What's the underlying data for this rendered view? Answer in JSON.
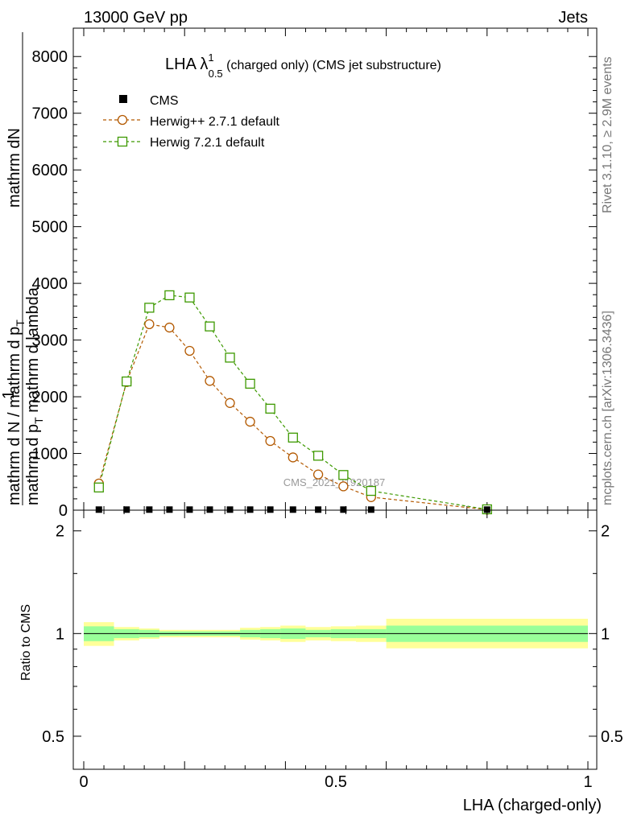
{
  "header": {
    "left": "13000 GeV pp",
    "right": "Jets"
  },
  "side_texts": {
    "rivet": "Rivet 3.1.10, ≥ 2.9M events",
    "mcplots": "mcplots.cern.ch [arXiv:1306.3436]"
  },
  "watermark": "CMS_2021_I1920187",
  "colors": {
    "cms": "#000000",
    "herwig_pp": "#b35900",
    "herwig7": "#3d9900",
    "band_inner": "#99ff99",
    "band_outer": "#ffff99"
  },
  "chart_data": [
    {
      "type": "line",
      "title_parts": {
        "main": "LHA λ",
        "sup": "1",
        "sub": "0.5",
        "rest": " (charged only) (CMS jet substructure)"
      },
      "ylabel_parts": {
        "top": "mathrm dN",
        "bottom": "mathrm d p",
        "sub": "T",
        "tail": " mathrm d lambda",
        "one": "1",
        "denom": "mathrm d N / mathrm d p",
        "denom_sub": "T"
      },
      "xlim": [
        0,
        1
      ],
      "ylim": [
        0,
        8500
      ],
      "yticks": [
        0,
        1000,
        2000,
        3000,
        4000,
        5000,
        6000,
        7000,
        8000
      ],
      "ytick_labels": [
        "0",
        "1000",
        "2000",
        "3000",
        "4000",
        "5000",
        "6000",
        "7000",
        "8000"
      ],
      "legend": [
        "CMS",
        "Herwig++ 2.7.1 default",
        "Herwig 7.2.1 default"
      ],
      "series": [
        {
          "name": "CMS",
          "x": [
            0.03,
            0.085,
            0.13,
            0.17,
            0.21,
            0.25,
            0.29,
            0.33,
            0.37,
            0.415,
            0.465,
            0.515,
            0.57,
            0.8
          ],
          "y": [
            10,
            10,
            10,
            10,
            10,
            10,
            10,
            10,
            10,
            10,
            10,
            10,
            10,
            10
          ]
        },
        {
          "name": "Herwig++ 2.7.1 default",
          "x": [
            0.03,
            0.085,
            0.13,
            0.17,
            0.21,
            0.25,
            0.29,
            0.33,
            0.37,
            0.415,
            0.465,
            0.515,
            0.57,
            0.8
          ],
          "y": [
            470,
            2260,
            3280,
            3220,
            2810,
            2280,
            1890,
            1560,
            1220,
            930,
            630,
            420,
            230,
            10
          ]
        },
        {
          "name": "Herwig 7.2.1 default",
          "x": [
            0.03,
            0.085,
            0.13,
            0.17,
            0.21,
            0.25,
            0.29,
            0.33,
            0.37,
            0.415,
            0.465,
            0.515,
            0.57,
            0.8
          ],
          "y": [
            400,
            2270,
            3570,
            3790,
            3750,
            3240,
            2690,
            2230,
            1790,
            1280,
            960,
            620,
            340,
            15
          ]
        }
      ]
    },
    {
      "type": "area",
      "ylabel": "Ratio to CMS",
      "xlabel": "LHA (charged-only)",
      "xlim": [
        0,
        1
      ],
      "ylim": [
        0.4,
        2.3
      ],
      "log_y": true,
      "xticks": [
        0,
        0.5,
        1
      ],
      "xtick_labels": [
        "0",
        "0.5",
        "1"
      ],
      "yticks": [
        0.5,
        1,
        2
      ],
      "ytick_labels": [
        "0.5",
        "1",
        "2"
      ],
      "bins": [
        [
          0.0,
          0.06,
          0.95,
          1.05,
          0.92,
          1.08
        ],
        [
          0.06,
          0.11,
          0.97,
          1.03,
          0.955,
          1.045
        ],
        [
          0.11,
          0.15,
          0.975,
          1.025,
          0.965,
          1.035
        ],
        [
          0.15,
          0.19,
          0.985,
          1.015,
          0.975,
          1.025
        ],
        [
          0.19,
          0.23,
          0.985,
          1.015,
          0.975,
          1.025
        ],
        [
          0.23,
          0.27,
          0.985,
          1.015,
          0.975,
          1.025
        ],
        [
          0.27,
          0.31,
          0.985,
          1.015,
          0.975,
          1.025
        ],
        [
          0.31,
          0.35,
          0.975,
          1.025,
          0.96,
          1.04
        ],
        [
          0.35,
          0.39,
          0.97,
          1.03,
          0.955,
          1.045
        ],
        [
          0.39,
          0.44,
          0.965,
          1.035,
          0.945,
          1.055
        ],
        [
          0.44,
          0.49,
          0.975,
          1.025,
          0.955,
          1.045
        ],
        [
          0.49,
          0.54,
          0.97,
          1.03,
          0.95,
          1.05
        ],
        [
          0.54,
          0.6,
          0.97,
          1.03,
          0.945,
          1.055
        ],
        [
          0.6,
          1.0,
          0.945,
          1.055,
          0.905,
          1.105
        ]
      ],
      "bins_columns": [
        "x_lo",
        "x_hi",
        "inner_lo",
        "inner_hi",
        "outer_lo",
        "outer_hi"
      ]
    }
  ]
}
